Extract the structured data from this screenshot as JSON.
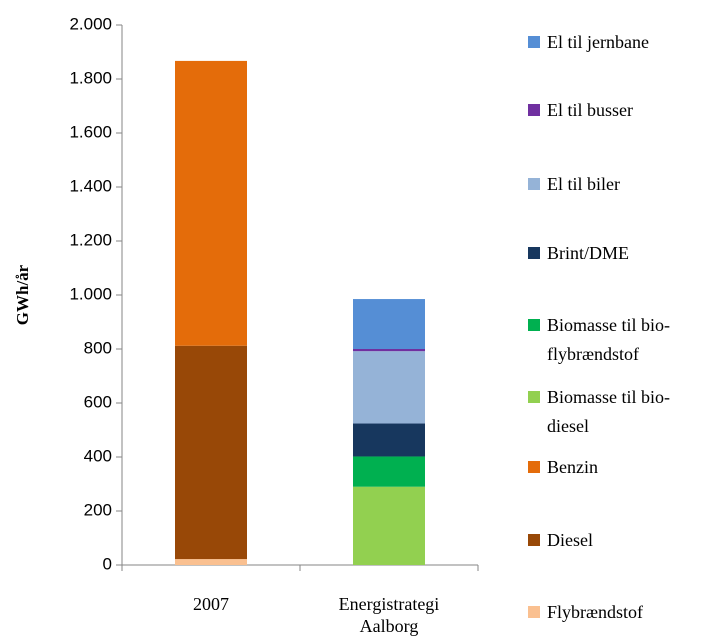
{
  "chart_data": {
    "type": "stacked_bar",
    "y_label": "GWh/år",
    "categories": [
      "2007",
      "Energistrategi Aalborg"
    ],
    "series": [
      {
        "name": "Flybrændstof",
        "color": "#fac090",
        "values": [
          22,
          null
        ]
      },
      {
        "name": "Diesel",
        "color": "#984807",
        "values": [
          790,
          null
        ]
      },
      {
        "name": "Benzin",
        "color": "#e46c0a",
        "values": [
          1055,
          null
        ]
      },
      {
        "name": "Biomasse til bio-diesel",
        "color": "#92d050",
        "values": [
          null,
          290
        ]
      },
      {
        "name": "Biomasse til bio-flybrændstof",
        "color": "#00b050",
        "values": [
          null,
          112
        ]
      },
      {
        "name": "Brint/DME",
        "color": "#17375e",
        "values": [
          null,
          122
        ]
      },
      {
        "name": "El til biler",
        "color": "#95b3d7",
        "values": [
          null,
          268
        ]
      },
      {
        "name": "El til busser",
        "color": "#7030a0",
        "values": [
          null,
          8
        ]
      },
      {
        "name": "El til jernbane",
        "color": "#558ed5",
        "values": [
          null,
          185
        ]
      }
    ],
    "ylim": [
      0,
      2000
    ],
    "yticks": [
      0,
      200,
      400,
      600,
      800,
      {
        "value": 1000,
        "label": "1.000"
      },
      {
        "value": 1200,
        "label": "1.200"
      },
      {
        "value": 1400,
        "label": "1.400"
      },
      {
        "value": 1600,
        "label": "1.600"
      },
      {
        "value": 1800,
        "label": "1.800"
      },
      {
        "value": 2000,
        "label": "2.000"
      }
    ],
    "legend": "right"
  }
}
